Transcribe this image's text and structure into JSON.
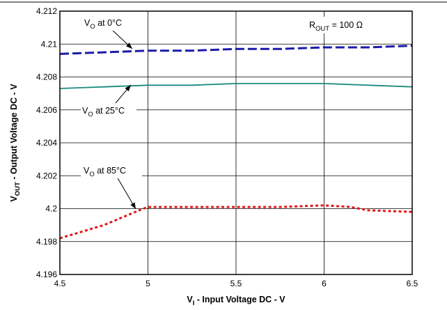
{
  "chart_data": {
    "type": "line",
    "xlabel": {
      "main": "V",
      "sub": "I",
      "rest": " - Input Voltage DC - V"
    },
    "ylabel": {
      "main": "V",
      "sub": "OUT",
      "rest": " - Output Voltage DC - V"
    },
    "xlim": [
      4.5,
      6.5
    ],
    "ylim": [
      4.196,
      4.212
    ],
    "x_ticks": [
      "4.5",
      "5",
      "5.5",
      "6",
      "6.5"
    ],
    "y_ticks": [
      "4.196",
      "4.198",
      "4.2",
      "4.202",
      "4.204",
      "4.206",
      "4.208",
      "4.21",
      "4.212"
    ],
    "grid": true,
    "series": [
      {
        "name": "VO at 0°C",
        "color": "#1a1aa8",
        "dash": "long-dash",
        "x": [
          4.5,
          4.75,
          5.0,
          5.25,
          5.5,
          5.75,
          6.0,
          6.25,
          6.5
        ],
        "y": [
          4.2094,
          4.2095,
          4.2096,
          4.2096,
          4.2097,
          4.2097,
          4.2098,
          4.2098,
          4.2099
        ]
      },
      {
        "name": "VO at 25°C",
        "color": "#1a8a80",
        "dash": "solid",
        "x": [
          4.5,
          4.75,
          5.0,
          5.25,
          5.5,
          5.75,
          6.0,
          6.25,
          6.5
        ],
        "y": [
          4.2073,
          4.2074,
          4.2075,
          4.2075,
          4.2076,
          4.2076,
          4.2076,
          4.2075,
          4.2074
        ]
      },
      {
        "name": "VO at 85°C",
        "color": "#e01818",
        "dash": "short-dash",
        "x": [
          4.5,
          4.75,
          4.95,
          5.0,
          5.25,
          5.5,
          5.75,
          6.0,
          6.15,
          6.25,
          6.5
        ],
        "y": [
          4.1982,
          4.199,
          4.1999,
          4.2001,
          4.2001,
          4.2001,
          4.2001,
          4.2002,
          4.2001,
          4.1999,
          4.1998
        ]
      }
    ],
    "annotations": [
      {
        "main": "V",
        "sub": "O",
        "rest": " at 0°C"
      },
      {
        "main": "V",
        "sub": "O",
        "rest": " at 25°C"
      },
      {
        "main": "V",
        "sub": "O",
        "rest": " at 85°C"
      },
      {
        "main": "R",
        "sub": "OUT",
        "rest": " = 100 Ω"
      }
    ]
  }
}
